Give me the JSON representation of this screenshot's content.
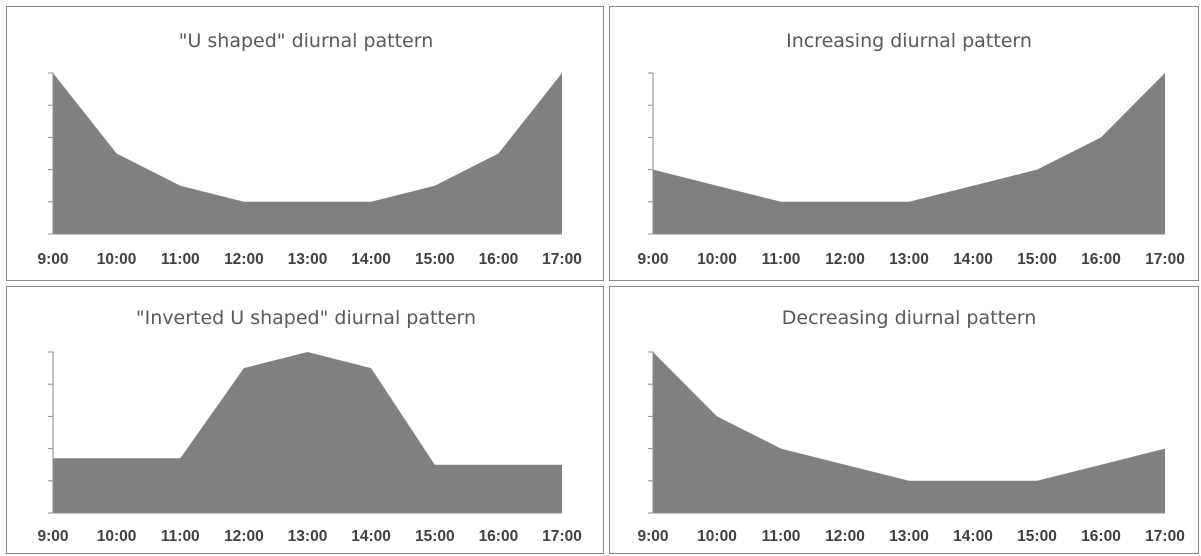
{
  "colors": {
    "area_fill": "#808080",
    "axis": "#8c8c8c",
    "border": "#8a8a8a",
    "title": "#595959",
    "tick_label": "#404040"
  },
  "chart_data": [
    {
      "type": "area",
      "title": "\"U shaped\" diurnal pattern",
      "categories": [
        "9:00",
        "10:00",
        "11:00",
        "12:00",
        "13:00",
        "14:00",
        "15:00",
        "16:00",
        "17:00"
      ],
      "values": [
        10,
        5,
        3,
        2,
        2,
        2,
        3,
        5,
        10
      ],
      "ylim": [
        0,
        10
      ],
      "y_ticks": 5,
      "y_tick_labels_visible": false,
      "grid": false,
      "xlabel": "",
      "ylabel": ""
    },
    {
      "type": "area",
      "title": "Increasing diurnal pattern",
      "categories": [
        "9:00",
        "10:00",
        "11:00",
        "12:00",
        "13:00",
        "14:00",
        "15:00",
        "16:00",
        "17:00"
      ],
      "values": [
        4,
        3,
        2,
        2,
        2,
        3,
        4,
        6,
        10
      ],
      "ylim": [
        0,
        10
      ],
      "y_ticks": 5,
      "y_tick_labels_visible": false,
      "grid": false,
      "xlabel": "",
      "ylabel": ""
    },
    {
      "type": "area",
      "title": "\"Inverted U shaped\" diurnal pattern",
      "categories": [
        "9:00",
        "10:00",
        "11:00",
        "12:00",
        "13:00",
        "14:00",
        "15:00",
        "16:00",
        "17:00"
      ],
      "values": [
        3.4,
        3.4,
        3.4,
        9,
        10,
        9,
        3,
        3,
        3
      ],
      "ylim": [
        0,
        10
      ],
      "y_ticks": 5,
      "y_tick_labels_visible": false,
      "grid": false,
      "xlabel": "",
      "ylabel": ""
    },
    {
      "type": "area",
      "title": "Decreasing diurnal pattern",
      "categories": [
        "9:00",
        "10:00",
        "11:00",
        "12:00",
        "13:00",
        "14:00",
        "15:00",
        "16:00",
        "17:00"
      ],
      "values": [
        10,
        6,
        4,
        3,
        2,
        2,
        2,
        3,
        4
      ],
      "ylim": [
        0,
        10
      ],
      "y_ticks": 5,
      "y_tick_labels_visible": false,
      "grid": false,
      "xlabel": "",
      "ylabel": ""
    }
  ]
}
